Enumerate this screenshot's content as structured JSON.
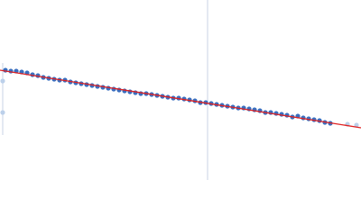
{
  "chart_data": {
    "type": "scatter",
    "xlim": [
      0,
      400
    ],
    "ylim": [
      0,
      200
    ],
    "series": [
      {
        "color": "#3a6ebf",
        "x": [
          6,
          12,
          18,
          24,
          30,
          36,
          42,
          48,
          54,
          60,
          66,
          72,
          78,
          84,
          90,
          96,
          102,
          108,
          114,
          120,
          126,
          132,
          138,
          144,
          150,
          156,
          162,
          168,
          174,
          180,
          186,
          192,
          198,
          204,
          210,
          216,
          222,
          228,
          234,
          240,
          246,
          252,
          258,
          264,
          270,
          276,
          282,
          288,
          294,
          300,
          306,
          312,
          318,
          324,
          330,
          336,
          342,
          348,
          354,
          360,
          366
        ],
        "values": [
          122,
          121,
          121,
          120,
          119,
          117,
          116,
          114,
          113,
          112,
          111,
          111,
          109,
          108,
          107,
          106,
          105,
          104,
          103,
          102,
          101,
          100,
          99,
          98,
          97,
          96,
          96,
          95,
          94,
          93,
          92,
          91,
          91,
          90,
          89,
          88,
          86,
          86,
          85,
          84,
          83,
          82,
          81,
          80,
          80,
          79,
          78,
          77,
          75,
          75,
          74,
          73,
          72,
          70,
          71,
          69,
          68,
          67,
          66,
          64,
          63
        ]
      },
      {
        "color": "#bcd0ea",
        "x": [
          3,
          3,
          385,
          395
        ],
        "values": [
          110,
          75,
          62,
          61
        ]
      }
    ],
    "fit": {
      "color": "#e02020",
      "x": [
        0,
        400
      ],
      "values": [
        122,
        58
      ]
    },
    "vline": {
      "color": "#c9d3e6",
      "x": 230
    }
  }
}
